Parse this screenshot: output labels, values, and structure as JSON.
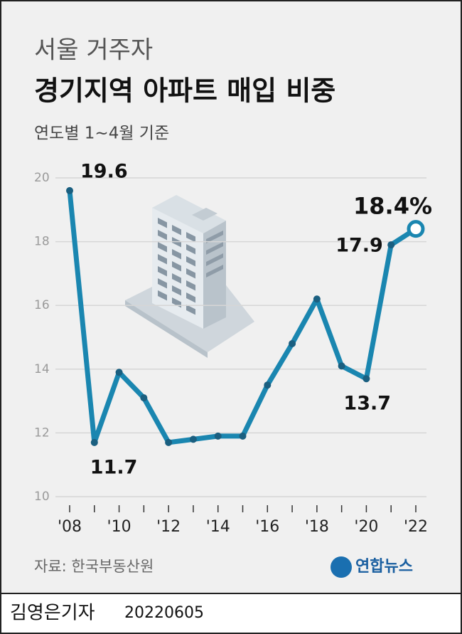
{
  "chart_data": {
    "type": "line",
    "title_top": "서울 거주자",
    "title": "경기지역 아파트 매입 비중",
    "subtitle": "연도별 1~4월 기준",
    "source": "자료: 한국부동산원",
    "logo": "연합뉴스",
    "categories": [
      "'08",
      null,
      "'10",
      null,
      "'12",
      null,
      "'14",
      null,
      "'16",
      null,
      "'18",
      null,
      "'20",
      null,
      "'22"
    ],
    "series": [
      {
        "name": "경기지역 아파트 매입 비중",
        "color": "#1a86b0",
        "values": [
          19.6,
          11.7,
          13.9,
          13.1,
          11.7,
          11.8,
          11.9,
          11.9,
          13.5,
          14.8,
          16.2,
          14.1,
          13.7,
          17.9,
          18.4
        ],
        "value_labels": [
          "19.6",
          "11.7",
          null,
          null,
          null,
          null,
          null,
          null,
          null,
          null,
          null,
          null,
          "13.7",
          "17.9",
          "18.4%"
        ]
      }
    ],
    "ylim": [
      10,
      20
    ],
    "yticks": [
      10,
      12,
      14,
      16,
      18,
      20
    ],
    "grid": true
  },
  "footer": {
    "author": "김영은기자",
    "date": "20220605"
  }
}
